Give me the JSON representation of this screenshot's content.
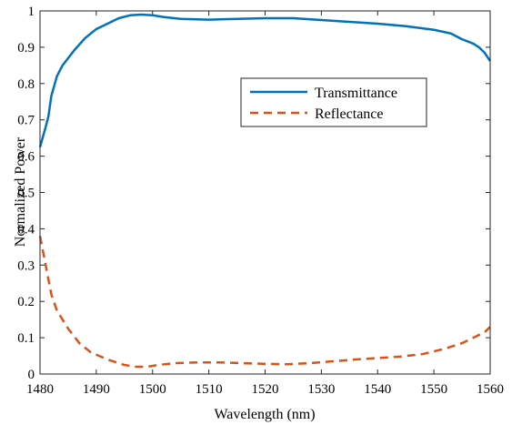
{
  "chart_data": {
    "type": "line",
    "title": "",
    "xlabel": "Wavelength (nm)",
    "ylabel": "Normalized Power",
    "xlim": [
      1480,
      1560
    ],
    "ylim": [
      0,
      1
    ],
    "xticks": [
      1480,
      1490,
      1500,
      1510,
      1520,
      1530,
      1540,
      1550,
      1560
    ],
    "yticks": [
      0,
      0.1,
      0.2,
      0.3,
      0.4,
      0.5,
      0.6,
      0.7,
      0.8,
      0.9,
      1
    ],
    "xtick_labels": [
      "1480",
      "1490",
      "1500",
      "1510",
      "1520",
      "1530",
      "1540",
      "1550",
      "1560"
    ],
    "ytick_labels": [
      "0",
      "0.1",
      "0.2",
      "0.3",
      "0.4",
      "0.5",
      "0.6",
      "0.7",
      "0.8",
      "0.9",
      "1"
    ],
    "grid": false,
    "legend_position": "upper-right",
    "series": [
      {
        "name": "Transmittance",
        "color": "#0072BD",
        "style": "solid",
        "x": [
          1480,
          1481,
          1481.5,
          1482,
          1483,
          1484,
          1486,
          1488,
          1490,
          1492,
          1494,
          1496,
          1498,
          1500,
          1502,
          1505,
          1510,
          1515,
          1520,
          1525,
          1530,
          1535,
          1540,
          1545,
          1550,
          1553,
          1555,
          1557,
          1558,
          1559,
          1560
        ],
        "y": [
          0.625,
          0.68,
          0.71,
          0.765,
          0.82,
          0.85,
          0.89,
          0.925,
          0.95,
          0.965,
          0.98,
          0.988,
          0.99,
          0.988,
          0.983,
          0.978,
          0.976,
          0.978,
          0.98,
          0.98,
          0.975,
          0.97,
          0.965,
          0.958,
          0.948,
          0.938,
          0.922,
          0.91,
          0.9,
          0.885,
          0.862
        ]
      },
      {
        "name": "Reflectance",
        "color": "#D95319",
        "style": "dashed",
        "x": [
          1480,
          1481,
          1482,
          1483,
          1485,
          1487,
          1489,
          1492,
          1495,
          1497,
          1499,
          1501,
          1504,
          1508,
          1512,
          1516,
          1520,
          1524,
          1528,
          1532,
          1536,
          1540,
          1544,
          1548,
          1552,
          1555,
          1557,
          1559,
          1560
        ],
        "y": [
          0.38,
          0.3,
          0.22,
          0.175,
          0.125,
          0.085,
          0.06,
          0.04,
          0.025,
          0.02,
          0.02,
          0.025,
          0.03,
          0.032,
          0.032,
          0.03,
          0.028,
          0.027,
          0.03,
          0.035,
          0.04,
          0.044,
          0.048,
          0.055,
          0.07,
          0.085,
          0.1,
          0.115,
          0.13
        ]
      }
    ]
  }
}
